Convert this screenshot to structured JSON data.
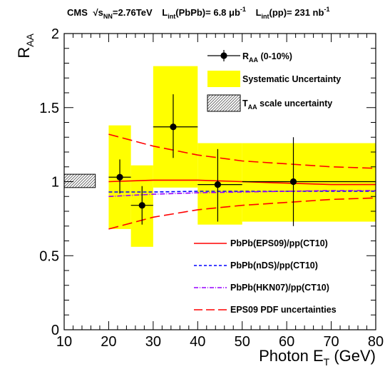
{
  "header": {
    "experiment": "CMS",
    "sqrt_label": "s",
    "sqrt_sub": "NN",
    "energy": "=2.76TeV",
    "lumi_pbpb_prefix": "L",
    "lumi_pbpb_sub": "int",
    "lumi_pbpb_value": "(PbPb)= 6.8 μb",
    "lumi_pbpb_sup": "-1",
    "lumi_pp_prefix": "L",
    "lumi_pp_sub": "int",
    "lumi_pp_value": "(pp)= 231 nb",
    "lumi_pp_sup": "-1"
  },
  "chart_data": {
    "type": "scatter",
    "xlabel": "Photon E",
    "xlabel_sub": "T",
    "xlabel_unit": " (GeV)",
    "ylabel": "R",
    "ylabel_sub": "AA",
    "xlim": [
      10,
      80
    ],
    "ylim": [
      0,
      2
    ],
    "x_ticks": [
      10,
      20,
      30,
      40,
      50,
      60,
      70,
      80
    ],
    "y_ticks": [
      0,
      0.5,
      1,
      1.5,
      2
    ],
    "y_tick_labels": [
      "0",
      "0.5",
      "1",
      "1.5",
      "2"
    ],
    "grid": false,
    "data_points": {
      "name": "R",
      "name_sub": "AA",
      "name_suffix": " (0-10%)",
      "color": "#000000",
      "points": [
        {
          "x": 22.5,
          "y": 1.03,
          "xlo": 20,
          "xhi": 25,
          "ylo": 0.92,
          "yhi": 1.15
        },
        {
          "x": 27.5,
          "y": 0.84,
          "xlo": 25,
          "xhi": 30,
          "ylo": 0.71,
          "yhi": 0.97
        },
        {
          "x": 34.5,
          "y": 1.37,
          "xlo": 30,
          "xhi": 40,
          "ylo": 1.16,
          "yhi": 1.59
        },
        {
          "x": 44.5,
          "y": 0.98,
          "xlo": 40,
          "xhi": 50,
          "ylo": 0.73,
          "yhi": 1.22
        },
        {
          "x": 61.5,
          "y": 1.0,
          "xlo": 50,
          "xhi": 80,
          "ylo": 0.7,
          "yhi": 1.3
        }
      ]
    },
    "systematic_uncertainty": {
      "name": "Systematic Uncertainty",
      "color": "#ffff00",
      "boxes": [
        {
          "x0": 20,
          "x1": 25,
          "y0": 0.68,
          "y1": 1.38
        },
        {
          "x0": 25,
          "x1": 30,
          "y0": 0.56,
          "y1": 1.11
        },
        {
          "x0": 30,
          "x1": 40,
          "y0": 0.96,
          "y1": 1.78
        },
        {
          "x0": 40,
          "x1": 50,
          "y0": 0.71,
          "y1": 1.26
        },
        {
          "x0": 50,
          "x1": 80,
          "y0": 0.73,
          "y1": 1.26
        }
      ]
    },
    "taa_uncertainty": {
      "name": "T",
      "name_sub": "AA",
      "name_suffix": " scale uncertainty",
      "x0": 10,
      "x1": 17,
      "y0": 0.96,
      "y1": 1.05
    },
    "series": [
      {
        "name": "PbPb(EPS09)/pp(CT10)",
        "color": "#ff0000",
        "dash": "solid",
        "x": [
          20,
          30,
          40,
          50,
          60,
          70,
          80
        ],
        "y": [
          1.0,
          1.01,
          1.01,
          1.0,
          0.99,
          0.98,
          0.98
        ]
      },
      {
        "name": "PbPb(nDS)/pp(CT10)",
        "color": "#0000ff",
        "dash": "dashed",
        "x": [
          20,
          30,
          40,
          50,
          60,
          70,
          80
        ],
        "y": [
          0.93,
          0.93,
          0.935,
          0.935,
          0.935,
          0.935,
          0.935
        ]
      },
      {
        "name": "PbPb(HKN07)/pp(CT10)",
        "color": "#9900ff",
        "dash": "dashdot",
        "x": [
          20,
          30,
          40,
          50,
          60,
          70,
          80
        ],
        "y": [
          0.9,
          0.915,
          0.925,
          0.93,
          0.935,
          0.94,
          0.94
        ]
      },
      {
        "name": "EPS09 PDF uncertainties",
        "color": "#ff0000",
        "dash": "longdash",
        "x": [
          20,
          30,
          40,
          50,
          60,
          70,
          80
        ],
        "y": [
          1.32,
          1.24,
          1.18,
          1.14,
          1.12,
          1.1,
          1.09
        ]
      },
      {
        "name": "",
        "color": "#ff0000",
        "dash": "longdash",
        "x": [
          20,
          30,
          40,
          50,
          60,
          70,
          80
        ],
        "y": [
          0.68,
          0.76,
          0.81,
          0.84,
          0.86,
          0.88,
          0.89
        ]
      }
    ],
    "legend_top": "upper-right",
    "legend_bottom": "lower-right"
  }
}
